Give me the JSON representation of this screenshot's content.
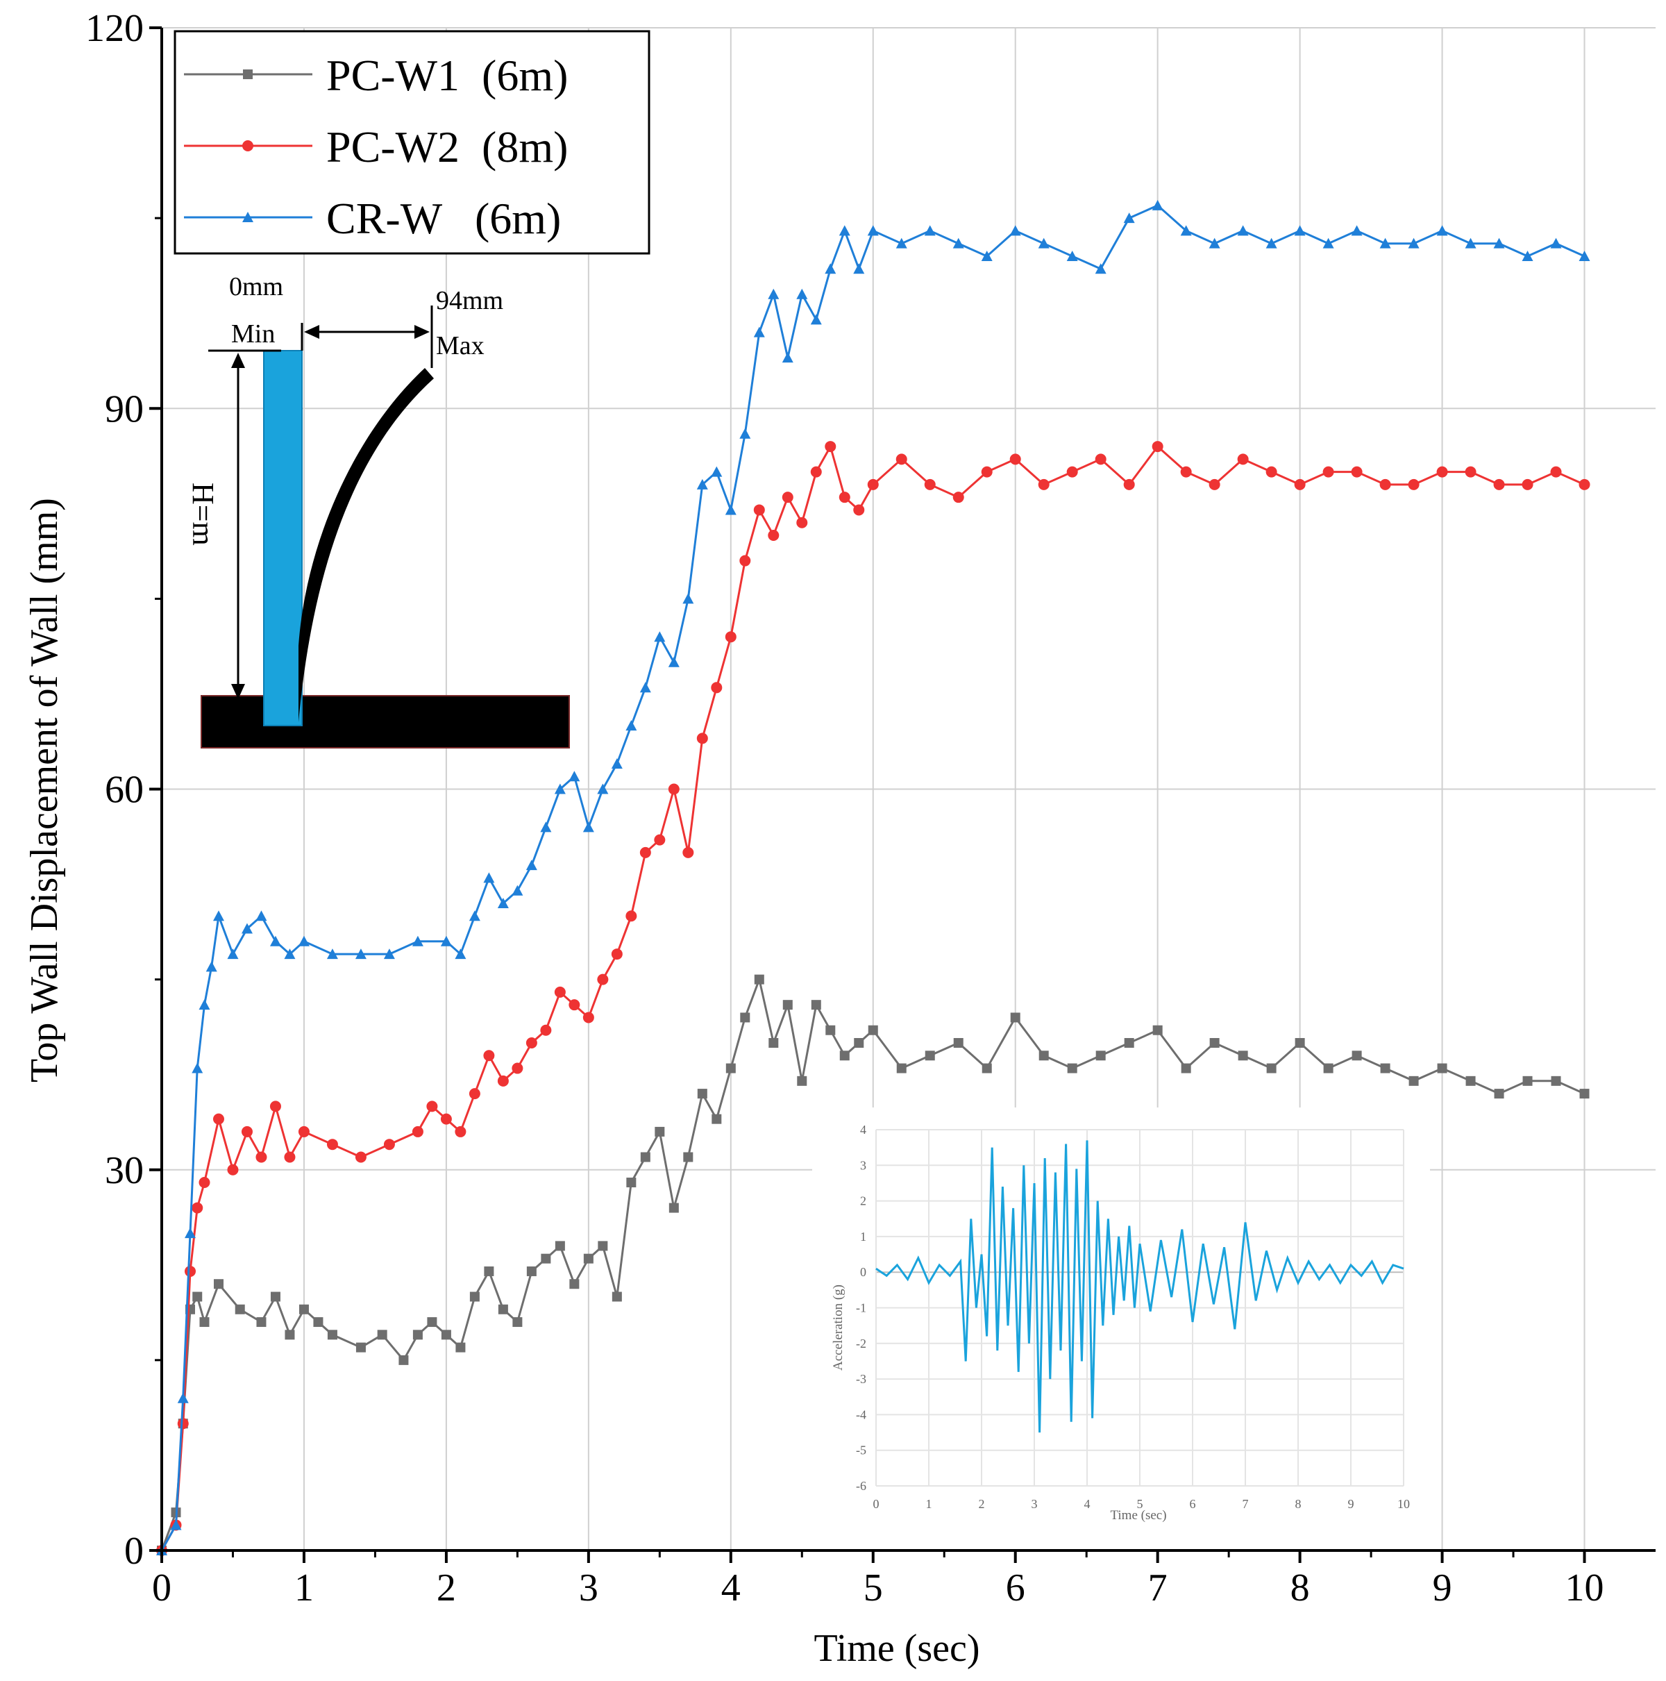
{
  "chart_data": {
    "type": "line",
    "title": "",
    "xlabel": "Time (sec)",
    "ylabel": "Top Wall Displacement of Wall (mm)",
    "xlim": [
      0,
      10.5
    ],
    "ylim": [
      0,
      120
    ],
    "x_ticks": [
      0,
      1,
      2,
      3,
      4,
      5,
      6,
      7,
      8,
      9,
      10
    ],
    "y_ticks": [
      0,
      30,
      60,
      90,
      120
    ],
    "grid": true,
    "legend_position": "top-left",
    "series": [
      {
        "name": "PC-W1  (6m)",
        "color": "#6e6e6e",
        "marker": "square",
        "x": [
          0.0,
          0.1,
          0.15,
          0.2,
          0.25,
          0.3,
          0.4,
          0.55,
          0.7,
          0.8,
          0.9,
          1.0,
          1.1,
          1.2,
          1.4,
          1.55,
          1.7,
          1.8,
          1.9,
          2.0,
          2.1,
          2.2,
          2.3,
          2.4,
          2.5,
          2.6,
          2.7,
          2.8,
          2.9,
          3.0,
          3.1,
          3.2,
          3.3,
          3.4,
          3.5,
          3.6,
          3.7,
          3.8,
          3.9,
          4.0,
          4.1,
          4.2,
          4.3,
          4.4,
          4.5,
          4.6,
          4.7,
          4.8,
          4.9,
          5.0,
          5.2,
          5.4,
          5.6,
          5.8,
          6.0,
          6.2,
          6.4,
          6.6,
          6.8,
          7.0,
          7.2,
          7.4,
          7.6,
          7.8,
          8.0,
          8.2,
          8.4,
          8.6,
          8.8,
          9.0,
          9.2,
          9.4,
          9.6,
          9.8,
          10.0
        ],
        "values": [
          0,
          3,
          10,
          19,
          20,
          18,
          21,
          19,
          18,
          20,
          17,
          19,
          18,
          17,
          16,
          17,
          15,
          17,
          18,
          17,
          16,
          20,
          22,
          19,
          18,
          22,
          23,
          24,
          21,
          23,
          24,
          20,
          29,
          31,
          33,
          27,
          31,
          36,
          34,
          38,
          42,
          45,
          40,
          43,
          37,
          43,
          41,
          39,
          40,
          41,
          38,
          39,
          40,
          38,
          42,
          39,
          38,
          39,
          40,
          41,
          38,
          40,
          39,
          38,
          40,
          38,
          39,
          38,
          37,
          38,
          37,
          36,
          37,
          37,
          36
        ]
      },
      {
        "name": "PC-W2  (8m)",
        "color": "#ee3333",
        "marker": "circle",
        "x": [
          0.0,
          0.1,
          0.15,
          0.2,
          0.25,
          0.3,
          0.4,
          0.5,
          0.6,
          0.7,
          0.8,
          0.9,
          1.0,
          1.2,
          1.4,
          1.6,
          1.8,
          1.9,
          2.0,
          2.1,
          2.2,
          2.3,
          2.4,
          2.5,
          2.6,
          2.7,
          2.8,
          2.9,
          3.0,
          3.1,
          3.2,
          3.3,
          3.4,
          3.5,
          3.6,
          3.7,
          3.8,
          3.9,
          4.0,
          4.1,
          4.2,
          4.3,
          4.4,
          4.5,
          4.6,
          4.7,
          4.8,
          4.9,
          5.0,
          5.2,
          5.4,
          5.6,
          5.8,
          6.0,
          6.2,
          6.4,
          6.6,
          6.8,
          7.0,
          7.2,
          7.4,
          7.6,
          7.8,
          8.0,
          8.2,
          8.4,
          8.6,
          8.8,
          9.0,
          9.2,
          9.4,
          9.6,
          9.8,
          10.0
        ],
        "values": [
          0,
          2,
          10,
          22,
          27,
          29,
          34,
          30,
          33,
          31,
          35,
          31,
          33,
          32,
          31,
          32,
          33,
          35,
          34,
          33,
          36,
          39,
          37,
          38,
          40,
          41,
          44,
          43,
          42,
          45,
          47,
          50,
          55,
          56,
          60,
          55,
          64,
          68,
          72,
          78,
          82,
          80,
          83,
          81,
          85,
          87,
          83,
          82,
          84,
          86,
          84,
          83,
          85,
          86,
          84,
          85,
          86,
          84,
          87,
          85,
          84,
          86,
          85,
          84,
          85,
          85,
          84,
          84,
          85,
          85,
          84,
          84,
          85,
          84
        ]
      },
      {
        "name": "CR-W   (6m)",
        "color": "#1f7fd8",
        "marker": "triangle",
        "x": [
          0.0,
          0.1,
          0.15,
          0.2,
          0.25,
          0.3,
          0.35,
          0.4,
          0.5,
          0.6,
          0.7,
          0.8,
          0.9,
          1.0,
          1.2,
          1.4,
          1.6,
          1.8,
          2.0,
          2.1,
          2.2,
          2.3,
          2.4,
          2.5,
          2.6,
          2.7,
          2.8,
          2.9,
          3.0,
          3.1,
          3.2,
          3.3,
          3.4,
          3.5,
          3.6,
          3.7,
          3.8,
          3.9,
          4.0,
          4.1,
          4.2,
          4.3,
          4.4,
          4.5,
          4.6,
          4.7,
          4.8,
          4.9,
          5.0,
          5.2,
          5.4,
          5.6,
          5.8,
          6.0,
          6.2,
          6.4,
          6.6,
          6.8,
          7.0,
          7.2,
          7.4,
          7.6,
          7.8,
          8.0,
          8.2,
          8.4,
          8.6,
          8.8,
          9.0,
          9.2,
          9.4,
          9.6,
          9.8,
          10.0
        ],
        "values": [
          0,
          2,
          12,
          25,
          38,
          43,
          46,
          50,
          47,
          49,
          50,
          48,
          47,
          48,
          47,
          47,
          47,
          48,
          48,
          47,
          50,
          53,
          51,
          52,
          54,
          57,
          60,
          61,
          57,
          60,
          62,
          65,
          68,
          72,
          70,
          75,
          84,
          85,
          82,
          88,
          96,
          99,
          94,
          99,
          97,
          101,
          104,
          101,
          104,
          103,
          104,
          103,
          102,
          104,
          103,
          102,
          101,
          105,
          106,
          104,
          103,
          104,
          103,
          104,
          103,
          104,
          103,
          103,
          104,
          103,
          103,
          102,
          103,
          102
        ]
      }
    ]
  },
  "inset_schematic": {
    "min_value_label": "0mm",
    "min_label": "Min",
    "max_value_label": "94mm",
    "max_label": "Max",
    "height_label": "H=m",
    "colors": {
      "wall": "#1aa3dc",
      "deflection": "#000000",
      "base": "#000000"
    }
  },
  "inset_chart": {
    "type": "line",
    "title": "",
    "xlabel": "Time (sec)",
    "ylabel": "Acceleration (g)",
    "xlim": [
      0,
      10
    ],
    "ylim": [
      -6,
      4
    ],
    "x_ticks": [
      0,
      1,
      2,
      3,
      4,
      5,
      6,
      7,
      8,
      9,
      10
    ],
    "y_ticks": [
      -6,
      -5,
      -4,
      -3,
      -2,
      -1,
      0,
      1,
      2,
      3,
      4
    ],
    "grid": true,
    "color": "#1aa3dc",
    "x": [
      0,
      0.2,
      0.4,
      0.6,
      0.8,
      1.0,
      1.2,
      1.4,
      1.6,
      1.7,
      1.8,
      1.9,
      2.0,
      2.1,
      2.2,
      2.3,
      2.4,
      2.5,
      2.6,
      2.7,
      2.8,
      2.9,
      3.0,
      3.1,
      3.2,
      3.3,
      3.4,
      3.5,
      3.6,
      3.7,
      3.8,
      3.9,
      4.0,
      4.1,
      4.2,
      4.3,
      4.4,
      4.5,
      4.6,
      4.7,
      4.8,
      4.9,
      5.0,
      5.2,
      5.4,
      5.6,
      5.8,
      6.0,
      6.2,
      6.4,
      6.6,
      6.8,
      7.0,
      7.2,
      7.4,
      7.6,
      7.8,
      8.0,
      8.2,
      8.4,
      8.6,
      8.8,
      9.0,
      9.2,
      9.4,
      9.6,
      9.8,
      10.0
    ],
    "values": [
      0.1,
      -0.1,
      0.2,
      -0.2,
      0.4,
      -0.3,
      0.2,
      -0.1,
      0.3,
      -2.5,
      1.5,
      -1.0,
      0.5,
      -1.8,
      3.5,
      -2.2,
      2.4,
      -1.5,
      1.8,
      -2.8,
      3.0,
      -2.0,
      2.5,
      -4.5,
      3.2,
      -3.0,
      2.8,
      -2.2,
      3.6,
      -4.2,
      2.9,
      -2.5,
      3.7,
      -4.1,
      2.0,
      -1.5,
      1.5,
      -1.2,
      1.0,
      -0.8,
      1.3,
      -1.0,
      0.8,
      -1.1,
      0.9,
      -0.7,
      1.2,
      -1.4,
      0.8,
      -0.9,
      0.7,
      -1.6,
      1.4,
      -0.8,
      0.6,
      -0.5,
      0.4,
      -0.3,
      0.3,
      -0.2,
      0.2,
      -0.3,
      0.2,
      -0.1,
      0.3,
      -0.3,
      0.2,
      0.1
    ]
  }
}
